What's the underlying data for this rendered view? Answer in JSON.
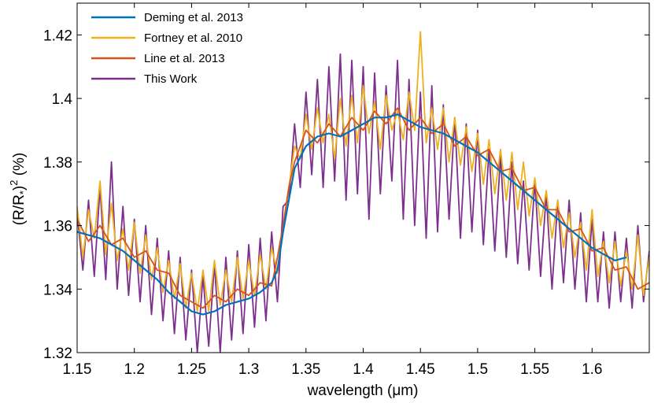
{
  "chart_data": {
    "type": "line",
    "xlabel_parts": [
      "wavelength (",
      "μ",
      "m)"
    ],
    "ylabel_parts": [
      "(R/R",
      "*",
      ")",
      "2",
      " (%)"
    ],
    "xlim": [
      1.15,
      1.65
    ],
    "ylim": [
      1.32,
      1.43
    ],
    "xticks": [
      1.15,
      1.2,
      1.25,
      1.3,
      1.35,
      1.4,
      1.45,
      1.5,
      1.55,
      1.6
    ],
    "xtick_labels": [
      "1.15",
      "1.2",
      "1.25",
      "1.3",
      "1.35",
      "1.4",
      "1.45",
      "1.5",
      "1.55",
      "1.6"
    ],
    "yticks": [
      1.32,
      1.34,
      1.36,
      1.38,
      1.4,
      1.42
    ],
    "ytick_labels": [
      "1.32",
      "1.34",
      "1.36",
      "1.38",
      "1.4",
      "1.42"
    ],
    "grid": false,
    "legend_position": "top-left",
    "colors": {
      "deming": "#0072BD",
      "fortney": "#EDB120",
      "line": "#D95319",
      "this_work": "#7E2F8E"
    },
    "series": [
      {
        "name": "Deming et al. 2013",
        "color_key": "deming",
        "x": [
          1.15,
          1.16,
          1.17,
          1.18,
          1.19,
          1.2,
          1.21,
          1.22,
          1.23,
          1.24,
          1.25,
          1.26,
          1.27,
          1.28,
          1.29,
          1.3,
          1.31,
          1.32,
          1.325,
          1.33,
          1.335,
          1.34,
          1.35,
          1.36,
          1.37,
          1.38,
          1.39,
          1.4,
          1.41,
          1.42,
          1.43,
          1.44,
          1.45,
          1.46,
          1.47,
          1.48,
          1.49,
          1.5,
          1.51,
          1.52,
          1.53,
          1.54,
          1.55,
          1.56,
          1.57,
          1.58,
          1.59,
          1.6,
          1.61,
          1.62,
          1.63
        ],
        "y": [
          1.358,
          1.357,
          1.356,
          1.354,
          1.352,
          1.349,
          1.346,
          1.343,
          1.339,
          1.336,
          1.333,
          1.332,
          1.333,
          1.335,
          1.336,
          1.337,
          1.339,
          1.342,
          1.346,
          1.358,
          1.368,
          1.378,
          1.385,
          1.388,
          1.389,
          1.388,
          1.39,
          1.392,
          1.394,
          1.394,
          1.395,
          1.393,
          1.391,
          1.39,
          1.389,
          1.387,
          1.385,
          1.383,
          1.38,
          1.377,
          1.374,
          1.371,
          1.368,
          1.365,
          1.362,
          1.359,
          1.356,
          1.353,
          1.351,
          1.349,
          1.35
        ]
      },
      {
        "name": "Fortney et al. 2010",
        "color_key": "fortney",
        "x": [
          1.15,
          1.155,
          1.16,
          1.165,
          1.17,
          1.175,
          1.18,
          1.185,
          1.19,
          1.195,
          1.2,
          1.205,
          1.21,
          1.215,
          1.22,
          1.225,
          1.23,
          1.235,
          1.24,
          1.245,
          1.25,
          1.255,
          1.26,
          1.265,
          1.27,
          1.275,
          1.28,
          1.285,
          1.29,
          1.295,
          1.3,
          1.305,
          1.31,
          1.315,
          1.32,
          1.325,
          1.33,
          1.335,
          1.34,
          1.345,
          1.35,
          1.355,
          1.36,
          1.365,
          1.37,
          1.375,
          1.38,
          1.385,
          1.39,
          1.395,
          1.4,
          1.405,
          1.41,
          1.415,
          1.42,
          1.425,
          1.43,
          1.435,
          1.44,
          1.445,
          1.45,
          1.455,
          1.46,
          1.465,
          1.47,
          1.475,
          1.48,
          1.485,
          1.49,
          1.495,
          1.5,
          1.505,
          1.51,
          1.515,
          1.52,
          1.525,
          1.53,
          1.535,
          1.54,
          1.545,
          1.55,
          1.555,
          1.56,
          1.565,
          1.57,
          1.575,
          1.58,
          1.585,
          1.59,
          1.595,
          1.6,
          1.605,
          1.61,
          1.615,
          1.62,
          1.625,
          1.63,
          1.635,
          1.64,
          1.645,
          1.65
        ],
        "y": [
          1.366,
          1.35,
          1.365,
          1.356,
          1.374,
          1.351,
          1.367,
          1.349,
          1.359,
          1.346,
          1.361,
          1.345,
          1.357,
          1.343,
          1.353,
          1.339,
          1.349,
          1.337,
          1.348,
          1.334,
          1.345,
          1.333,
          1.346,
          1.333,
          1.349,
          1.335,
          1.346,
          1.336,
          1.35,
          1.337,
          1.349,
          1.338,
          1.351,
          1.34,
          1.353,
          1.345,
          1.36,
          1.372,
          1.385,
          1.381,
          1.395,
          1.384,
          1.397,
          1.386,
          1.395,
          1.381,
          1.4,
          1.385,
          1.401,
          1.386,
          1.404,
          1.389,
          1.399,
          1.384,
          1.401,
          1.39,
          1.396,
          1.387,
          1.402,
          1.39,
          1.421,
          1.386,
          1.397,
          1.384,
          1.397,
          1.38,
          1.394,
          1.379,
          1.391,
          1.377,
          1.389,
          1.373,
          1.387,
          1.37,
          1.384,
          1.368,
          1.383,
          1.365,
          1.38,
          1.363,
          1.375,
          1.36,
          1.371,
          1.356,
          1.368,
          1.353,
          1.364,
          1.35,
          1.361,
          1.346,
          1.365,
          1.344,
          1.355,
          1.342,
          1.355,
          1.341,
          1.352,
          1.34,
          1.357,
          1.338,
          1.35
        ]
      },
      {
        "name": "Line et al. 2013",
        "color_key": "line",
        "x": [
          1.15,
          1.16,
          1.17,
          1.18,
          1.19,
          1.2,
          1.21,
          1.22,
          1.23,
          1.24,
          1.25,
          1.26,
          1.27,
          1.28,
          1.29,
          1.3,
          1.31,
          1.32,
          1.325,
          1.33,
          1.335,
          1.34,
          1.35,
          1.36,
          1.37,
          1.38,
          1.39,
          1.4,
          1.41,
          1.42,
          1.43,
          1.44,
          1.45,
          1.46,
          1.47,
          1.48,
          1.49,
          1.5,
          1.51,
          1.52,
          1.53,
          1.54,
          1.55,
          1.56,
          1.57,
          1.58,
          1.59,
          1.6,
          1.61,
          1.62,
          1.63,
          1.64,
          1.65
        ],
        "y": [
          1.362,
          1.355,
          1.36,
          1.354,
          1.356,
          1.35,
          1.352,
          1.346,
          1.345,
          1.338,
          1.336,
          1.334,
          1.338,
          1.336,
          1.34,
          1.338,
          1.342,
          1.341,
          1.35,
          1.36,
          1.372,
          1.38,
          1.39,
          1.386,
          1.392,
          1.388,
          1.394,
          1.39,
          1.396,
          1.392,
          1.397,
          1.39,
          1.394,
          1.389,
          1.392,
          1.385,
          1.388,
          1.382,
          1.384,
          1.377,
          1.378,
          1.371,
          1.372,
          1.365,
          1.365,
          1.358,
          1.359,
          1.352,
          1.353,
          1.346,
          1.347,
          1.34,
          1.342
        ]
      },
      {
        "name": "This Work",
        "color_key": "this_work",
        "x": [
          1.15,
          1.155,
          1.16,
          1.165,
          1.17,
          1.175,
          1.18,
          1.185,
          1.19,
          1.195,
          1.2,
          1.205,
          1.21,
          1.215,
          1.22,
          1.225,
          1.23,
          1.235,
          1.24,
          1.245,
          1.25,
          1.255,
          1.26,
          1.265,
          1.27,
          1.275,
          1.28,
          1.285,
          1.29,
          1.295,
          1.3,
          1.305,
          1.31,
          1.315,
          1.32,
          1.325,
          1.33,
          1.335,
          1.34,
          1.345,
          1.35,
          1.355,
          1.36,
          1.365,
          1.37,
          1.375,
          1.38,
          1.385,
          1.39,
          1.395,
          1.4,
          1.405,
          1.41,
          1.415,
          1.42,
          1.425,
          1.43,
          1.435,
          1.44,
          1.445,
          1.45,
          1.455,
          1.46,
          1.465,
          1.47,
          1.475,
          1.48,
          1.485,
          1.49,
          1.495,
          1.5,
          1.505,
          1.51,
          1.515,
          1.52,
          1.525,
          1.53,
          1.535,
          1.54,
          1.545,
          1.55,
          1.555,
          1.56,
          1.565,
          1.57,
          1.575,
          1.58,
          1.585,
          1.59,
          1.595,
          1.6,
          1.605,
          1.61,
          1.615,
          1.62,
          1.625,
          1.63,
          1.635,
          1.64,
          1.645,
          1.65
        ],
        "y": [
          1.364,
          1.346,
          1.368,
          1.344,
          1.372,
          1.343,
          1.38,
          1.34,
          1.366,
          1.338,
          1.362,
          1.336,
          1.36,
          1.332,
          1.356,
          1.33,
          1.352,
          1.326,
          1.35,
          1.324,
          1.346,
          1.32,
          1.344,
          1.322,
          1.348,
          1.32,
          1.35,
          1.324,
          1.352,
          1.326,
          1.354,
          1.328,
          1.356,
          1.33,
          1.358,
          1.336,
          1.366,
          1.368,
          1.392,
          1.372,
          1.402,
          1.376,
          1.406,
          1.372,
          1.41,
          1.374,
          1.414,
          1.368,
          1.412,
          1.37,
          1.41,
          1.362,
          1.408,
          1.37,
          1.404,
          1.374,
          1.412,
          1.362,
          1.406,
          1.36,
          1.402,
          1.356,
          1.404,
          1.358,
          1.398,
          1.362,
          1.394,
          1.356,
          1.392,
          1.358,
          1.39,
          1.354,
          1.384,
          1.352,
          1.382,
          1.35,
          1.38,
          1.348,
          1.374,
          1.346,
          1.374,
          1.344,
          1.37,
          1.34,
          1.368,
          1.342,
          1.368,
          1.34,
          1.364,
          1.336,
          1.362,
          1.336,
          1.358,
          1.334,
          1.358,
          1.336,
          1.356,
          1.334,
          1.36,
          1.336,
          1.352
        ]
      }
    ]
  }
}
